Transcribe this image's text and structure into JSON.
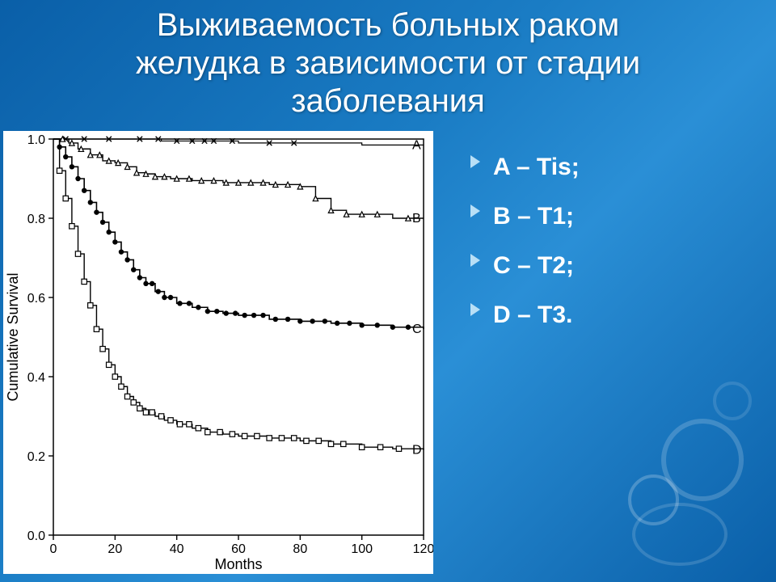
{
  "title_lines": [
    "Выживаемость больных раком",
    "желудка в зависимости от стадии",
    "заболевания"
  ],
  "legend_items": [
    "A – Tis;",
    "B – T1;",
    "C – T2;",
    "D – T3."
  ],
  "chart": {
    "type": "kaplan-meier",
    "background_color": "#ffffff",
    "axis_color": "#000000",
    "text_color": "#000000",
    "axis_label_fontsize": 18,
    "tick_fontsize": 16,
    "series_label_fontsize": 16,
    "xlabel": "Months",
    "ylabel": "Cumulative Survival",
    "xlim": [
      0,
      120
    ],
    "xtick_step": 20,
    "ylim": [
      0,
      1.0
    ],
    "ytick_step": 0.2,
    "marker_size": 3.2,
    "line_width": 1.4,
    "series": [
      {
        "name": "A",
        "label_y": 0.985,
        "marker": "x",
        "color": "#000000",
        "line_width": 1.2,
        "points": [
          [
            0,
            1.0
          ],
          [
            10,
            1.0
          ],
          [
            35,
            0.995
          ],
          [
            60,
            0.99
          ],
          [
            100,
            0.985
          ],
          [
            120,
            0.985
          ]
        ],
        "censor_x": [
          4,
          10,
          18,
          28,
          34,
          40,
          45,
          49,
          52,
          58,
          70,
          78
        ]
      },
      {
        "name": "B",
        "label_y": 0.8,
        "marker": "triangle",
        "color": "#000000",
        "line_width": 1.4,
        "points": [
          [
            0,
            1.0
          ],
          [
            5,
            0.99
          ],
          [
            8,
            0.975
          ],
          [
            12,
            0.96
          ],
          [
            16,
            0.945
          ],
          [
            20,
            0.94
          ],
          [
            24,
            0.93
          ],
          [
            27,
            0.915
          ],
          [
            30,
            0.912
          ],
          [
            33,
            0.905
          ],
          [
            38,
            0.9
          ],
          [
            45,
            0.895
          ],
          [
            55,
            0.89
          ],
          [
            70,
            0.885
          ],
          [
            80,
            0.88
          ],
          [
            85,
            0.85
          ],
          [
            90,
            0.82
          ],
          [
            95,
            0.81
          ],
          [
            110,
            0.8
          ],
          [
            120,
            0.8
          ]
        ],
        "censor_x": [
          3,
          6,
          9,
          12,
          15,
          18,
          21,
          24,
          27,
          30,
          33,
          36,
          40,
          44,
          48,
          52,
          56,
          60,
          64,
          68,
          72,
          76,
          80,
          85,
          90,
          95,
          100,
          105,
          115
        ]
      },
      {
        "name": "C",
        "label_y": 0.52,
        "marker": "circle-filled",
        "color": "#000000",
        "line_width": 1.6,
        "points": [
          [
            0,
            1.0
          ],
          [
            2,
            0.98
          ],
          [
            4,
            0.955
          ],
          [
            6,
            0.93
          ],
          [
            8,
            0.9
          ],
          [
            10,
            0.87
          ],
          [
            12,
            0.84
          ],
          [
            14,
            0.815
          ],
          [
            16,
            0.79
          ],
          [
            18,
            0.765
          ],
          [
            20,
            0.74
          ],
          [
            22,
            0.715
          ],
          [
            24,
            0.695
          ],
          [
            26,
            0.67
          ],
          [
            28,
            0.65
          ],
          [
            30,
            0.635
          ],
          [
            33,
            0.615
          ],
          [
            36,
            0.6
          ],
          [
            40,
            0.585
          ],
          [
            45,
            0.575
          ],
          [
            50,
            0.565
          ],
          [
            55,
            0.56
          ],
          [
            60,
            0.555
          ],
          [
            70,
            0.545
          ],
          [
            80,
            0.54
          ],
          [
            90,
            0.535
          ],
          [
            100,
            0.53
          ],
          [
            110,
            0.525
          ],
          [
            120,
            0.52
          ]
        ],
        "censor_x": [
          2,
          4,
          6,
          8,
          10,
          12,
          14,
          16,
          18,
          20,
          22,
          24,
          26,
          28,
          30,
          32,
          34,
          36,
          38,
          41,
          44,
          47,
          50,
          53,
          56,
          59,
          62,
          65,
          68,
          72,
          76,
          80,
          84,
          88,
          92,
          96,
          100,
          105,
          110,
          115
        ]
      },
      {
        "name": "D",
        "label_y": 0.215,
        "marker": "square-open",
        "color": "#000000",
        "line_width": 1.4,
        "points": [
          [
            0,
            1.0
          ],
          [
            2,
            0.92
          ],
          [
            4,
            0.85
          ],
          [
            6,
            0.78
          ],
          [
            8,
            0.71
          ],
          [
            10,
            0.64
          ],
          [
            12,
            0.58
          ],
          [
            14,
            0.52
          ],
          [
            16,
            0.47
          ],
          [
            18,
            0.43
          ],
          [
            20,
            0.4
          ],
          [
            22,
            0.375
          ],
          [
            24,
            0.35
          ],
          [
            26,
            0.335
          ],
          [
            28,
            0.32
          ],
          [
            30,
            0.31
          ],
          [
            33,
            0.3
          ],
          [
            36,
            0.29
          ],
          [
            40,
            0.28
          ],
          [
            45,
            0.27
          ],
          [
            50,
            0.26
          ],
          [
            55,
            0.255
          ],
          [
            60,
            0.25
          ],
          [
            70,
            0.245
          ],
          [
            80,
            0.238
          ],
          [
            90,
            0.23
          ],
          [
            100,
            0.222
          ],
          [
            110,
            0.218
          ],
          [
            120,
            0.215
          ]
        ],
        "censor_x": [
          2,
          4,
          6,
          8,
          10,
          12,
          14,
          16,
          18,
          20,
          22,
          24,
          26,
          28,
          30,
          32,
          35,
          38,
          41,
          44,
          47,
          50,
          54,
          58,
          62,
          66,
          70,
          74,
          78,
          82,
          86,
          90,
          94,
          100,
          106,
          112
        ]
      }
    ]
  },
  "style": {
    "title_color": "#ffffff",
    "title_fontsize": 40,
    "legend_color": "#ffffff",
    "legend_fontsize": 30,
    "legend_bullet_color": "#b8dff6",
    "slide_bg_gradient": [
      "#0a5fa8",
      "#1a7cc4",
      "#2a8fd6",
      "#0a5fa8"
    ]
  }
}
